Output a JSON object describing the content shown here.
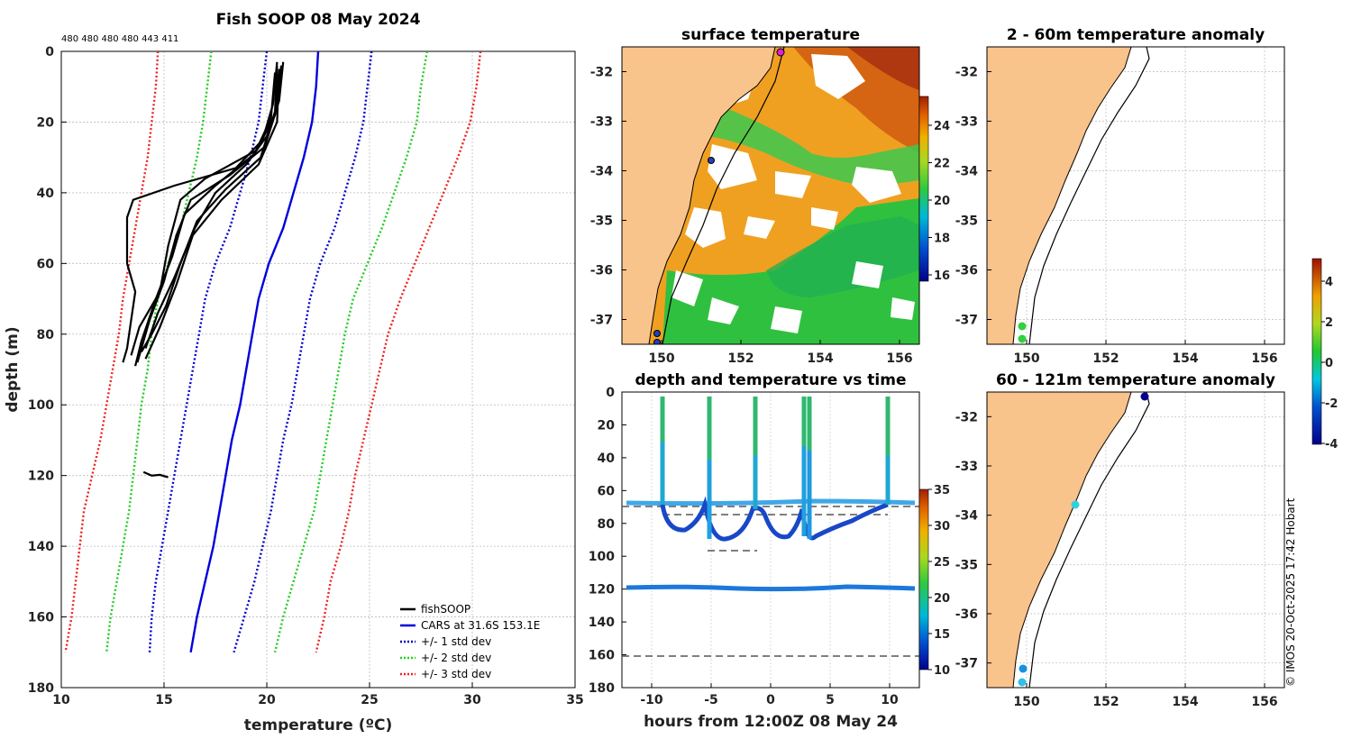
{
  "chart_data": [
    {
      "type": "line",
      "panel": "profile",
      "title": "Fish SOOP 08 May 2024",
      "xlabel": "temperature (ºC)",
      "ylabel": "depth (m)",
      "xlim": [
        10,
        35
      ],
      "ylim": [
        180,
        0
      ],
      "xticks": [
        "10",
        "15",
        "20",
        "25",
        "30",
        "35"
      ],
      "yticks": [
        "0",
        "20",
        "40",
        "60",
        "80",
        "100",
        "120",
        "140",
        "160",
        "180"
      ],
      "counts_label": "480 480 480 480 443 411",
      "legend": [
        "fishSOOP",
        "CARS at 31.6S 153.1E",
        "+/- 1 std dev",
        "+/- 2 std dev",
        "+/- 3 std dev"
      ],
      "series": [
        {
          "name": "CARS mean",
          "color": "#0000dd",
          "style": "solid",
          "points": [
            [
              22.5,
              0
            ],
            [
              22.4,
              10
            ],
            [
              22.2,
              20
            ],
            [
              21.8,
              30
            ],
            [
              21.3,
              40
            ],
            [
              20.8,
              50
            ],
            [
              20.1,
              60
            ],
            [
              19.6,
              70
            ],
            [
              19.3,
              80
            ],
            [
              19.0,
              90
            ],
            [
              18.7,
              100
            ],
            [
              18.3,
              110
            ],
            [
              18.0,
              120
            ],
            [
              17.7,
              130
            ],
            [
              17.4,
              140
            ],
            [
              17.0,
              150
            ],
            [
              16.6,
              160
            ],
            [
              16.3,
              170
            ]
          ]
        },
        {
          "name": "+1 std",
          "color": "#0000cc",
          "style": "dotted",
          "points": [
            [
              25.1,
              0
            ],
            [
              24.9,
              10
            ],
            [
              24.7,
              20
            ],
            [
              24.3,
              30
            ],
            [
              23.8,
              40
            ],
            [
              23.3,
              50
            ],
            [
              22.6,
              60
            ],
            [
              22.1,
              70
            ],
            [
              21.8,
              80
            ],
            [
              21.5,
              90
            ],
            [
              21.2,
              100
            ],
            [
              20.8,
              110
            ],
            [
              20.5,
              120
            ],
            [
              20.2,
              130
            ],
            [
              19.8,
              140
            ],
            [
              19.4,
              150
            ],
            [
              18.9,
              160
            ],
            [
              18.4,
              170
            ]
          ]
        },
        {
          "name": "-1 std",
          "color": "#0000cc",
          "style": "dotted",
          "points": [
            [
              20.0,
              0
            ],
            [
              19.8,
              10
            ],
            [
              19.6,
              20
            ],
            [
              19.2,
              30
            ],
            [
              18.7,
              40
            ],
            [
              18.2,
              50
            ],
            [
              17.5,
              60
            ],
            [
              17.0,
              70
            ],
            [
              16.7,
              80
            ],
            [
              16.4,
              90
            ],
            [
              16.1,
              100
            ],
            [
              15.8,
              110
            ],
            [
              15.5,
              120
            ],
            [
              15.2,
              130
            ],
            [
              14.9,
              140
            ],
            [
              14.6,
              150
            ],
            [
              14.4,
              160
            ],
            [
              14.3,
              170
            ]
          ]
        },
        {
          "name": "+2 std",
          "color": "#22cc22",
          "style": "dotted",
          "points": [
            [
              27.8,
              0
            ],
            [
              27.5,
              10
            ],
            [
              27.3,
              20
            ],
            [
              26.8,
              30
            ],
            [
              26.2,
              40
            ],
            [
              25.6,
              50
            ],
            [
              24.9,
              60
            ],
            [
              24.2,
              70
            ],
            [
              23.8,
              80
            ],
            [
              23.5,
              90
            ],
            [
              23.2,
              100
            ],
            [
              22.9,
              110
            ],
            [
              22.6,
              120
            ],
            [
              22.3,
              130
            ],
            [
              21.8,
              140
            ],
            [
              21.3,
              150
            ],
            [
              20.8,
              160
            ],
            [
              20.4,
              170
            ]
          ]
        },
        {
          "name": "-2 std",
          "color": "#22cc22",
          "style": "dotted",
          "points": [
            [
              17.3,
              0
            ],
            [
              17.1,
              10
            ],
            [
              16.9,
              20
            ],
            [
              16.6,
              30
            ],
            [
              16.2,
              40
            ],
            [
              15.8,
              50
            ],
            [
              15.2,
              60
            ],
            [
              14.7,
              70
            ],
            [
              14.4,
              80
            ],
            [
              14.2,
              90
            ],
            [
              13.9,
              100
            ],
            [
              13.7,
              110
            ],
            [
              13.5,
              120
            ],
            [
              13.3,
              130
            ],
            [
              13.0,
              140
            ],
            [
              12.7,
              150
            ],
            [
              12.4,
              160
            ],
            [
              12.2,
              170
            ]
          ]
        },
        {
          "name": "+3 std",
          "color": "#ee2222",
          "style": "dotted",
          "points": [
            [
              30.4,
              0
            ],
            [
              30.2,
              10
            ],
            [
              29.9,
              20
            ],
            [
              29.3,
              30
            ],
            [
              28.6,
              40
            ],
            [
              27.9,
              50
            ],
            [
              27.2,
              60
            ],
            [
              26.5,
              70
            ],
            [
              25.9,
              80
            ],
            [
              25.5,
              90
            ],
            [
              25.1,
              100
            ],
            [
              24.7,
              110
            ],
            [
              24.3,
              120
            ],
            [
              24.0,
              130
            ],
            [
              23.6,
              140
            ],
            [
              23.1,
              150
            ],
            [
              22.8,
              160
            ],
            [
              22.4,
              170
            ]
          ]
        },
        {
          "name": "-3 std",
          "color": "#ee2222",
          "style": "dotted",
          "points": [
            [
              14.7,
              0
            ],
            [
              14.6,
              10
            ],
            [
              14.4,
              20
            ],
            [
              14.2,
              30
            ],
            [
              13.9,
              40
            ],
            [
              13.6,
              50
            ],
            [
              13.3,
              60
            ],
            [
              13.0,
              70
            ],
            [
              12.8,
              80
            ],
            [
              12.5,
              90
            ],
            [
              12.2,
              100
            ],
            [
              11.9,
              110
            ],
            [
              11.5,
              120
            ],
            [
              11.1,
              130
            ],
            [
              10.9,
              140
            ],
            [
              10.7,
              150
            ],
            [
              10.5,
              160
            ],
            [
              10.2,
              170
            ]
          ]
        },
        {
          "name": "fishSOOP profiles",
          "color": "#000000",
          "style": "solid",
          "kind": "casts",
          "casts": [
            [
              [
                20.5,
                3
              ],
              [
                20.3,
                15
              ],
              [
                19.8,
                25
              ],
              [
                18.5,
                33
              ],
              [
                15.5,
                38
              ],
              [
                13.5,
                42
              ],
              [
                13.2,
                47
              ],
              [
                13.2,
                60
              ],
              [
                13.6,
                68
              ],
              [
                13.4,
                76
              ],
              [
                13.2,
                84
              ],
              [
                13.0,
                88
              ]
            ],
            [
              [
                20.6,
                5
              ],
              [
                20.4,
                18
              ],
              [
                19.5,
                28
              ],
              [
                17.0,
                36
              ],
              [
                15.8,
                42
              ],
              [
                15.2,
                55
              ],
              [
                14.8,
                68
              ],
              [
                13.8,
                78
              ],
              [
                13.4,
                86
              ]
            ],
            [
              [
                20.7,
                4
              ],
              [
                20.5,
                16
              ],
              [
                19.9,
                27
              ],
              [
                18.2,
                35
              ],
              [
                16.3,
                42
              ],
              [
                15.6,
                52
              ],
              [
                15.0,
                65
              ],
              [
                14.3,
                76
              ],
              [
                13.7,
                88
              ]
            ],
            [
              [
                20.4,
                6
              ],
              [
                20.2,
                19
              ],
              [
                19.4,
                29
              ],
              [
                17.5,
                38
              ],
              [
                16.0,
                46
              ],
              [
                15.4,
                58
              ],
              [
                14.6,
                70
              ],
              [
                13.9,
                82
              ],
              [
                13.6,
                89
              ]
            ],
            [
              [
                20.8,
                3
              ],
              [
                20.6,
                14
              ],
              [
                20.0,
                24
              ],
              [
                19.0,
                32
              ],
              [
                17.5,
                40
              ],
              [
                16.5,
                50
              ],
              [
                15.5,
                64
              ],
              [
                14.7,
                74
              ],
              [
                14.1,
                84
              ]
            ],
            [
              [
                20.5,
                4
              ],
              [
                20.4,
                17
              ],
              [
                19.7,
                30
              ],
              [
                18.0,
                39
              ],
              [
                16.6,
                48
              ],
              [
                15.8,
                60
              ],
              [
                15.1,
                72
              ],
              [
                14.4,
                80
              ],
              [
                13.9,
                85
              ]
            ],
            [
              [
                20.6,
                5
              ],
              [
                20.5,
                20
              ],
              [
                19.6,
                32
              ],
              [
                17.8,
                42
              ],
              [
                16.4,
                52
              ],
              [
                15.6,
                66
              ],
              [
                14.8,
                78
              ],
              [
                14.1,
                87
              ]
            ],
            [
              [
                14.0,
                119
              ],
              [
                14.4,
                120
              ],
              [
                14.8,
                119.8
              ],
              [
                15.2,
                120.5
              ]
            ]
          ]
        }
      ]
    },
    {
      "type": "heatmap",
      "panel": "surface",
      "title": "surface temperature",
      "xlim": [
        149,
        156.5
      ],
      "ylim": [
        -37.5,
        -31.5
      ],
      "xticks": [
        "150",
        "152",
        "154",
        "156"
      ],
      "yticks": [
        "-32",
        "-33",
        "-34",
        "-35",
        "-36",
        "-37"
      ],
      "colorbar_ticks": [
        "16",
        "18",
        "20",
        "22",
        "24"
      ]
    },
    {
      "type": "scatter",
      "panel": "time",
      "title": "depth and temperature vs time",
      "xlabel": "hours from 12:00Z 08 May 24",
      "xlim": [
        -12.5,
        12.5
      ],
      "ylim": [
        180,
        0
      ],
      "xticks": [
        "-10",
        "-5",
        "0",
        "5",
        "10"
      ],
      "yticks": [
        "0",
        "20",
        "40",
        "60",
        "80",
        "100",
        "120",
        "140",
        "160",
        "180"
      ],
      "colorbar_ticks": [
        "10",
        "15",
        "20",
        "25",
        "30",
        "35"
      ]
    },
    {
      "type": "scatter",
      "panel": "anomaly-shallow",
      "title": "2 - 60m temperature anomaly",
      "xlim": [
        149,
        156.5
      ],
      "ylim": [
        -37.5,
        -31.5
      ],
      "xticks": [
        "150",
        "152",
        "154",
        "156"
      ],
      "yticks": [
        "-32",
        "-33",
        "-34",
        "-35",
        "-36",
        "-37"
      ]
    },
    {
      "type": "scatter",
      "panel": "anomaly-deep",
      "title": "60 - 121m temperature anomaly",
      "xlim": [
        149,
        156.5
      ],
      "ylim": [
        -37.5,
        -31.5
      ],
      "xticks": [
        "150",
        "152",
        "154",
        "156"
      ],
      "yticks": [
        "-32",
        "-33",
        "-34",
        "-35",
        "-36",
        "-37"
      ],
      "colorbar_ticks": [
        "4",
        "2",
        "0",
        "-2",
        "-4"
      ]
    }
  ],
  "footer": {
    "credit": "© IMOS 20-Oct-2025 17:42 Hobart"
  }
}
